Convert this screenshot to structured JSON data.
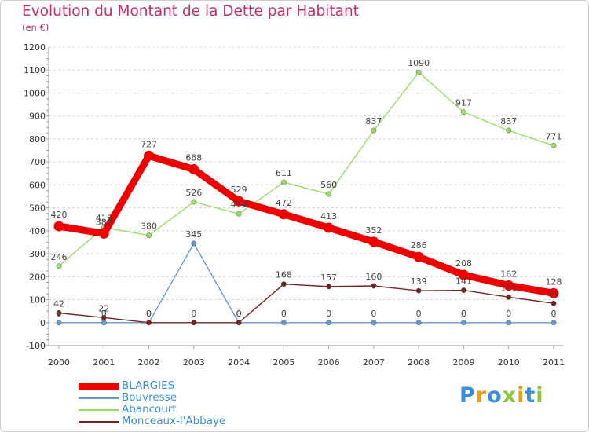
{
  "title": "Evolution du Montant de la Dette par Habitant",
  "unit": "(en €)",
  "logo_text": "Proxiti",
  "chart_data": {
    "type": "line",
    "title": "Evolution du Montant de la Dette par Habitant",
    "ylabel": "(en €)",
    "x": [
      "2000",
      "2001",
      "2002",
      "2003",
      "2004",
      "2005",
      "2006",
      "2007",
      "2008",
      "2009",
      "2010",
      "2011"
    ],
    "ylim": [
      -100,
      1200
    ],
    "yticks": [
      "-100",
      "0",
      "100",
      "200",
      "300",
      "400",
      "500",
      "600",
      "700",
      "800",
      "900",
      "1000",
      "1100",
      "1200"
    ],
    "grid": "horizontal dashed",
    "legend": "bottom-left",
    "series": [
      {
        "name": "BLARGIES",
        "color": "#ee0000",
        "values": [
          420,
          388,
          727,
          668,
          529,
          472,
          413,
          352,
          286,
          208,
          162,
          128
        ],
        "labels": [
          "420",
          "388",
          "727",
          "668",
          "529",
          "472",
          "413",
          "352",
          "286",
          "208",
          "162",
          "128"
        ]
      },
      {
        "name": "Bouvresse",
        "color": "#6699cc",
        "values": [
          0,
          0,
          0,
          345,
          0,
          0,
          0,
          0,
          0,
          0,
          0,
          0
        ],
        "labels": [
          "0",
          "0",
          "0",
          "345",
          "0",
          "0",
          "0",
          "0",
          "0",
          "0",
          "0",
          "0"
        ]
      },
      {
        "name": "Abancourt",
        "color": "#99dd66",
        "values": [
          246,
          415,
          380,
          526,
          474,
          611,
          560,
          837,
          1090,
          917,
          837,
          771
        ],
        "labels": [
          "246",
          "415",
          "380",
          "526",
          "474",
          "611",
          "560",
          "837",
          "1090",
          "917",
          "837",
          "771"
        ]
      },
      {
        "name": "Monceaux-l'Abbaye",
        "color": "#772222",
        "values": [
          42,
          22,
          0,
          0,
          0,
          168,
          157,
          160,
          139,
          141,
          111,
          84
        ],
        "labels": [
          "42",
          "22",
          "0",
          "0",
          "0",
          "168",
          "157",
          "160",
          "139",
          "141",
          "111",
          "84"
        ]
      }
    ]
  }
}
